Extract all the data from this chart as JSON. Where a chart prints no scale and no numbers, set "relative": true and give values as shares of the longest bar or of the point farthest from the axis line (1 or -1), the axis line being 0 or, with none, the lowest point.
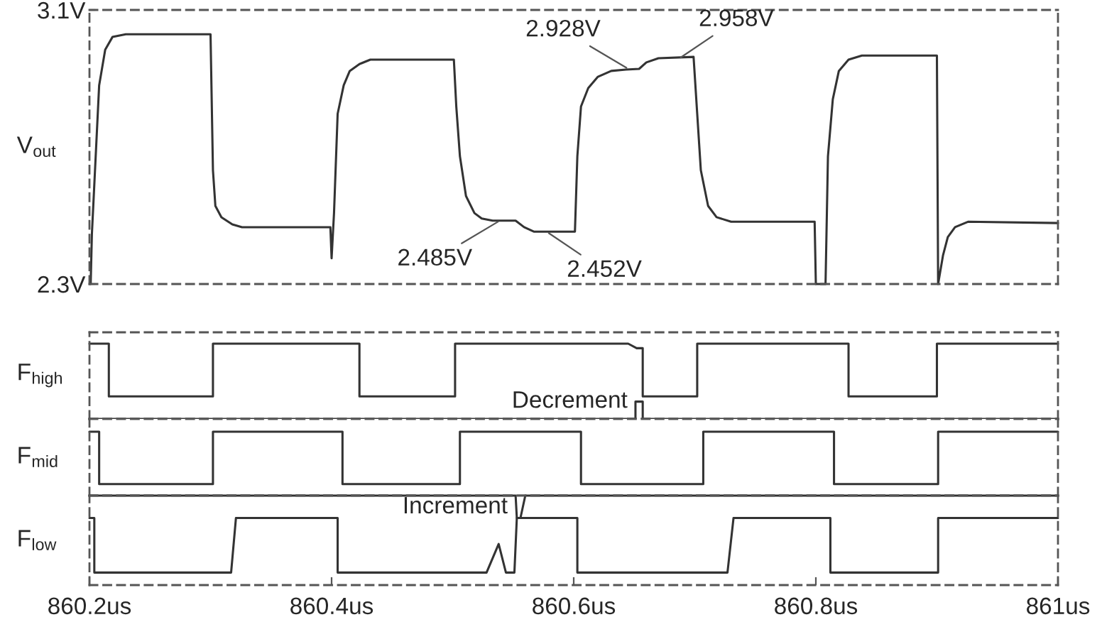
{
  "chart_data": [
    {
      "type": "line",
      "ylabel": "V$_{out}$",
      "xlim": [
        860.2,
        861
      ],
      "ylim": [
        2.3,
        3.1
      ],
      "yticks": [
        {
          "value": 3.1,
          "label": "3.1V"
        },
        {
          "value": 2.3,
          "label": "2.3V"
        }
      ],
      "tick_labels": "y",
      "grid": false,
      "legend": false,
      "series": [
        {
          "color": "#333333",
          "x": [
            860.201,
            860.202,
            860.208,
            860.213,
            860.219,
            860.23,
            860.3,
            860.302,
            860.304,
            860.309,
            860.318,
            860.326,
            860.399,
            860.4,
            860.402,
            860.405,
            860.41,
            860.415,
            860.423,
            860.432,
            860.501,
            860.503,
            860.506,
            860.511,
            860.518,
            860.524,
            860.533,
            860.552,
            860.559,
            860.567,
            860.601,
            860.603,
            860.606,
            860.612,
            860.62,
            860.631,
            860.643,
            860.654,
            860.66,
            860.67,
            860.699,
            860.702,
            860.705,
            860.711,
            860.718,
            860.73,
            860.799,
            860.8,
            860.808,
            860.81,
            860.814,
            860.819,
            860.827,
            860.838,
            860.9,
            860.901,
            860.905,
            860.909,
            860.915,
            860.926,
            861.0
          ],
          "values": [
            2.3,
            2.445,
            2.88,
            2.984,
            3.021,
            3.029,
            3.029,
            2.632,
            2.528,
            2.495,
            2.474,
            2.466,
            2.466,
            2.375,
            2.507,
            2.797,
            2.88,
            2.922,
            2.942,
            2.955,
            2.955,
            2.818,
            2.673,
            2.557,
            2.507,
            2.491,
            2.485,
            2.485,
            2.466,
            2.453,
            2.453,
            2.673,
            2.818,
            2.872,
            2.905,
            2.922,
            2.926,
            2.928,
            2.947,
            2.959,
            2.963,
            2.797,
            2.632,
            2.528,
            2.495,
            2.482,
            2.482,
            2.3,
            2.3,
            2.673,
            2.839,
            2.922,
            2.955,
            2.967,
            2.967,
            2.3,
            2.383,
            2.437,
            2.466,
            2.482,
            2.478
          ]
        }
      ],
      "annotations": [
        {
          "text": "2.485V",
          "x": 860.539,
          "y": 2.485
        },
        {
          "text": "2.452V",
          "x": 860.578,
          "y": 2.452
        },
        {
          "text": "2.928V",
          "x": 860.645,
          "y": 2.928
        },
        {
          "text": "2.958V",
          "x": 860.687,
          "y": 2.958
        }
      ]
    },
    {
      "type": "line",
      "relative": true,
      "ylabel": "F$_{high}$",
      "xlim": [
        860.2,
        861
      ],
      "tick_labels": false,
      "grid": false,
      "legend": false,
      "series": [
        {
          "color": "#333333",
          "x": [
            860.2,
            860.216,
            860.216,
            860.302,
            860.302,
            860.423,
            860.423,
            860.502,
            860.502,
            860.645,
            860.652,
            860.657,
            860.657,
            860.702,
            860.702,
            860.827,
            860.827,
            860.9,
            860.9,
            861
          ],
          "values": [
            1,
            1,
            0.3,
            0.3,
            1,
            1,
            0.3,
            0.3,
            1,
            1,
            0.94,
            0.94,
            0.3,
            0.3,
            1,
            1,
            0.3,
            0.3,
            1,
            1
          ]
        },
        {
          "color": "#333333",
          "x": [
            860.2,
            860.651,
            860.651,
            860.657,
            860.657,
            861
          ],
          "values": [
            0,
            0,
            0.23,
            0.23,
            0,
            0
          ]
        }
      ],
      "annotations": [
        {
          "text": "Decrement",
          "x": 860.651,
          "y": 0.23
        }
      ]
    },
    {
      "type": "line",
      "relative": true,
      "ylabel": "F$_{mid}$",
      "xlim": [
        860.2,
        861
      ],
      "tick_labels": false,
      "grid": false,
      "legend": false,
      "series": [
        {
          "color": "#333333",
          "x": [
            860.2,
            860.208,
            860.208,
            860.302,
            860.302,
            860.409,
            860.409,
            860.506,
            860.506,
            860.606,
            860.606,
            860.707,
            860.707,
            860.815,
            860.815,
            860.901,
            860.901,
            861
          ],
          "values": [
            1,
            1,
            0.18,
            0.18,
            1,
            1,
            0.18,
            0.18,
            1,
            1,
            0.18,
            0.18,
            1,
            1,
            0.18,
            0.18,
            1,
            1
          ]
        }
      ]
    },
    {
      "type": "line",
      "relative": true,
      "ylabel": "F$_{low}$",
      "xlim": [
        860.2,
        861
      ],
      "xticks": [
        {
          "value": 860.2,
          "label": "860.2us"
        },
        {
          "value": 860.4,
          "label": "860.4us"
        },
        {
          "value": 860.6,
          "label": "860.6us"
        },
        {
          "value": 860.8,
          "label": "860.8us"
        },
        {
          "value": 861,
          "label": "861us"
        }
      ],
      "tick_labels": "x",
      "grid": false,
      "legend": false,
      "series": [
        {
          "color": "#333333",
          "x": [
            860.2,
            860.204,
            860.204,
            860.317,
            860.321,
            860.405,
            860.405,
            860.528,
            860.538,
            860.544,
            860.551,
            860.553,
            860.603,
            860.603,
            860.727,
            860.732,
            860.812,
            860.812,
            860.901,
            860.901,
            861
          ],
          "values": [
            0.75,
            0.75,
            0.14,
            0.14,
            0.75,
            0.75,
            0.14,
            0.14,
            0.46,
            0.14,
            0.14,
            0.75,
            0.75,
            0.14,
            0.14,
            0.75,
            0.75,
            0.14,
            0.14,
            0.75,
            0.75
          ]
        },
        {
          "color": "#333333",
          "x": [
            860.2,
            860.552,
            860.553,
            860.556,
            860.56,
            861
          ],
          "values": [
            1,
            1,
            0.75,
            0.75,
            1,
            1
          ]
        }
      ],
      "annotations": [
        {
          "text": "Increment",
          "x": 860.552,
          "y": 0.87
        }
      ]
    }
  ]
}
